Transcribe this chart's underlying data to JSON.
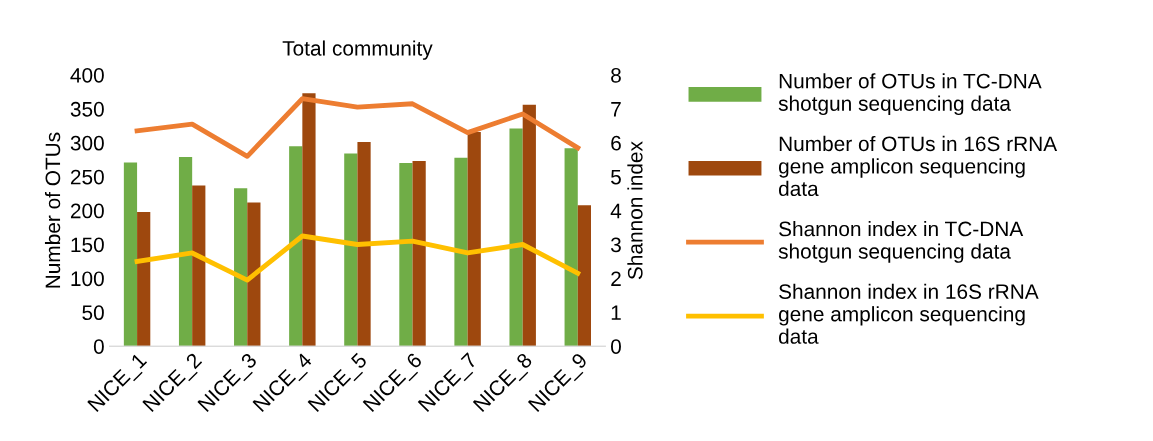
{
  "chart_data": {
    "type": "bar",
    "title": "Total community",
    "ylabel": "Number of OTUs",
    "y2label": "Shannon index",
    "categories": [
      "NICE_1",
      "NICE_2",
      "NICE_3",
      "NICE_4",
      "NICE_5",
      "NICE_6",
      "NICE_7",
      "NICE_8",
      "NICE_9"
    ],
    "series": [
      {
        "name": "Number of OTUs in TC-DNA shotgun sequencing data",
        "color": "#70ad47",
        "values": [
          271,
          279,
          233,
          295,
          284,
          270,
          278,
          321,
          292
        ]
      },
      {
        "name": "Number of OTUs in 16S rRNA gene amplicon sequencing data",
        "color": "#9e480e",
        "values": [
          198,
          237,
          212,
          373,
          301,
          273,
          316,
          356,
          208
        ]
      },
      {
        "name": "Shannon index in TC-DNA shotgun sequencing data",
        "type": "line",
        "axis": "y2",
        "color": "#ed7d31",
        "values": [
          6.35,
          6.55,
          5.6,
          7.3,
          7.05,
          7.15,
          6.3,
          6.85,
          5.85
        ]
      },
      {
        "name": "Shannon index in 16S rRNA gene amplicon sequencing data",
        "type": "line",
        "axis": "y2",
        "color": "#ffc000",
        "values": [
          2.5,
          2.75,
          1.95,
          3.25,
          3.0,
          3.1,
          2.75,
          3.0,
          2.15
        ]
      }
    ],
    "ylim": [
      0,
      400
    ],
    "yticks": [
      0,
      50,
      100,
      150,
      200,
      250,
      300,
      350,
      400
    ],
    "y2lim": [
      0,
      8
    ],
    "y2ticks": [
      0,
      1,
      2,
      3,
      4,
      5,
      6,
      7,
      8
    ],
    "grid": false,
    "legend": "right",
    "marker": "none"
  }
}
